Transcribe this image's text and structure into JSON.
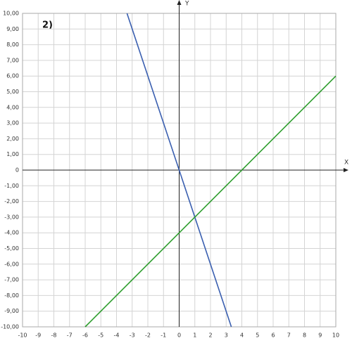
{
  "chart_data": {
    "type": "line",
    "title": "2)",
    "x_label": "X",
    "y_label": "Y",
    "xlim": [
      -10,
      10
    ],
    "ylim": [
      -10,
      10
    ],
    "xticks": [
      -10,
      -9,
      -8,
      -7,
      -6,
      -5,
      -4,
      -3,
      -2,
      -1,
      0,
      1,
      2,
      3,
      4,
      5,
      6,
      7,
      8,
      9,
      10
    ],
    "yticks": [
      {
        "value": 10,
        "label": "10,00"
      },
      {
        "value": 9,
        "label": "9,00"
      },
      {
        "value": 8,
        "label": "8,00"
      },
      {
        "value": 7,
        "label": "7,00"
      },
      {
        "value": 6,
        "label": "6,00"
      },
      {
        "value": 5,
        "label": "5,00"
      },
      {
        "value": 4,
        "label": "4,00"
      },
      {
        "value": 3,
        "label": "3,00"
      },
      {
        "value": 2,
        "label": "2,00"
      },
      {
        "value": 1,
        "label": "1,00"
      },
      0,
      {
        "value": -1,
        "label": "-1,00"
      },
      {
        "value": -2,
        "label": "-2,00"
      },
      {
        "value": -3,
        "label": "-3,00"
      },
      {
        "value": -4,
        "label": "-4,00"
      },
      {
        "value": -5,
        "label": "-5,00"
      },
      {
        "value": -6,
        "label": "-6,00"
      },
      {
        "value": -7,
        "label": "-7,00"
      },
      {
        "value": -8,
        "label": "-8,00"
      },
      {
        "value": -9,
        "label": "-9,00"
      },
      {
        "value": -10,
        "label": "-10,00"
      }
    ],
    "grid": true,
    "series": [
      {
        "color": "#3a5fb0",
        "x": [
          -3.33,
          3.33
        ],
        "values": [
          10,
          -10
        ]
      },
      {
        "color": "#2e9e2e",
        "x": [
          -6,
          10
        ],
        "values": [
          -10,
          6
        ]
      }
    ]
  }
}
